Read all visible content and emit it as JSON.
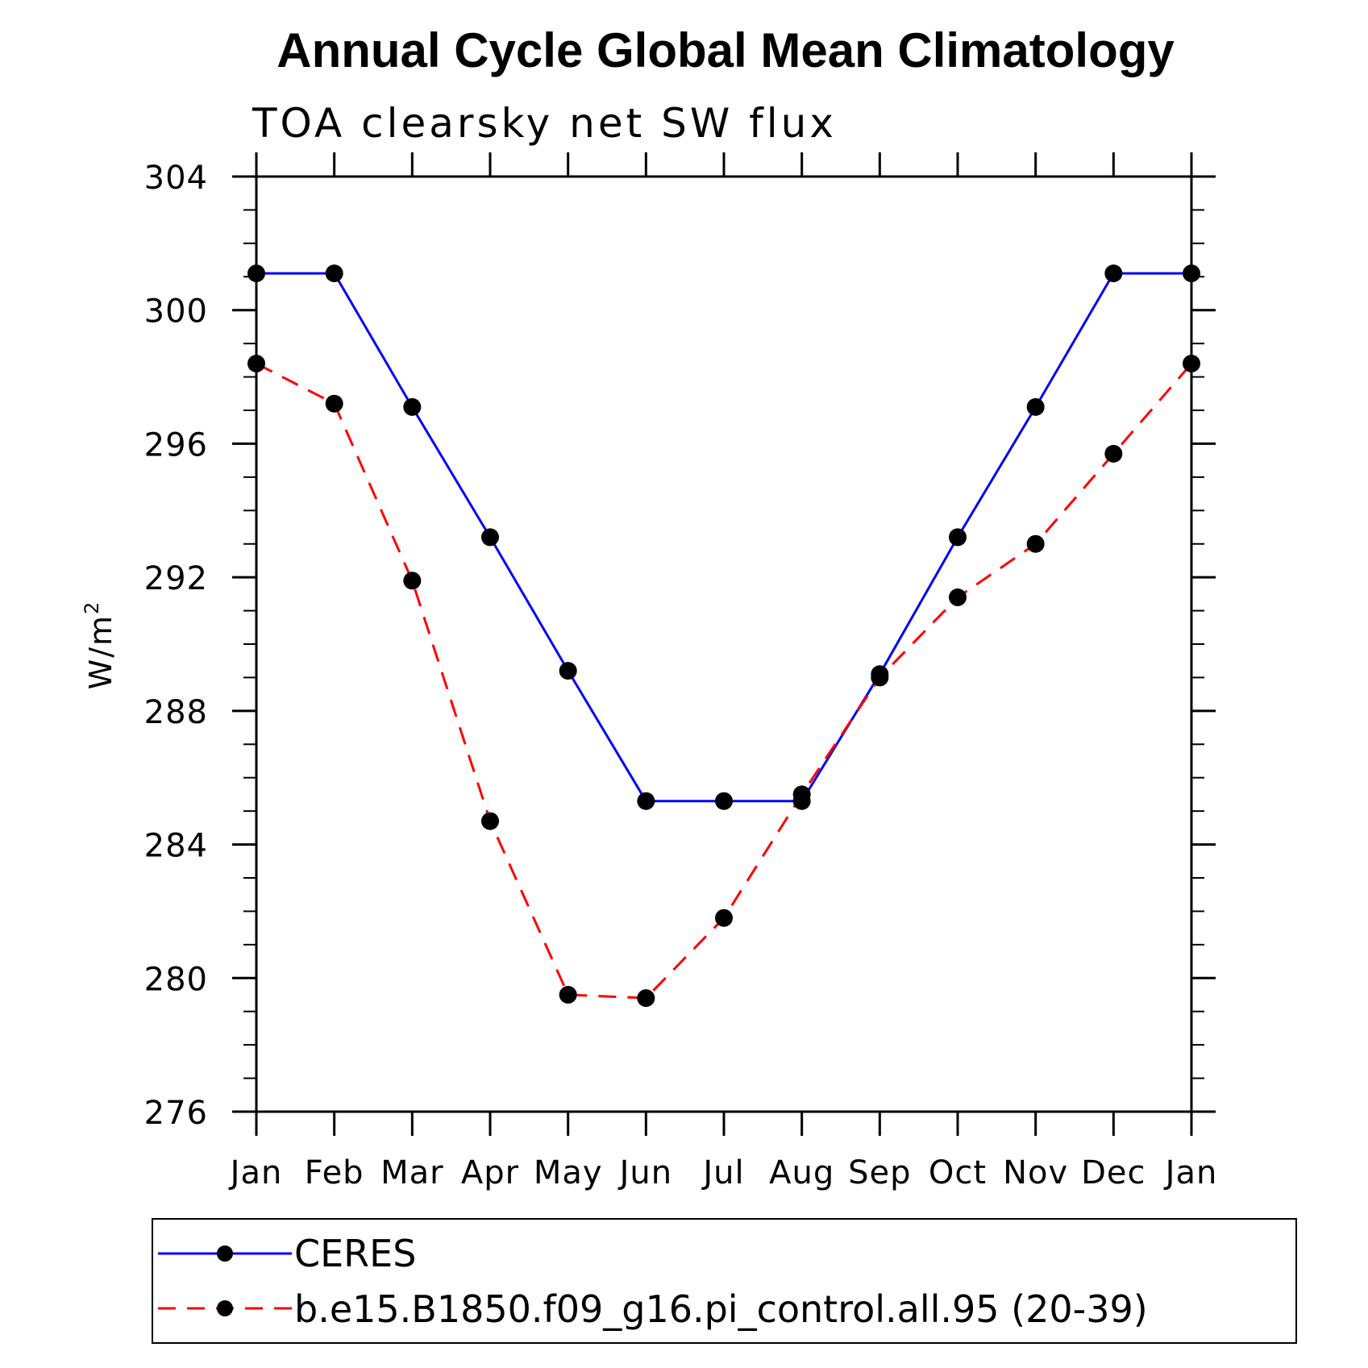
{
  "chart_data": {
    "type": "line",
    "title": "Annual Cycle Global Mean Climatology",
    "subtitle": "TOA clearsky net SW flux",
    "ylabel": "W/m",
    "ylabel_sup": "2",
    "ylim": [
      276,
      304
    ],
    "yticks": [
      276,
      280,
      284,
      288,
      292,
      296,
      300,
      304
    ],
    "y_minor_step": 1,
    "categories": [
      "Jan",
      "Feb",
      "Mar",
      "Apr",
      "May",
      "Jun",
      "Jul",
      "Aug",
      "Sep",
      "Oct",
      "Nov",
      "Dec",
      "Jan"
    ],
    "grid": false,
    "legend_position": "bottom",
    "series": [
      {
        "name": "CERES",
        "color": "#0000ff",
        "dash": "solid",
        "marker": "filled-circle",
        "values": [
          301.1,
          301.1,
          297.1,
          293.2,
          289.2,
          285.3,
          285.3,
          285.3,
          289.1,
          293.2,
          297.1,
          301.1,
          301.1
        ]
      },
      {
        "name": "b.e15.B1850.f09_g16.pi_control.all.95 (20-39)",
        "color": "#ff0000",
        "dash": "dashed",
        "marker": "filled-circle",
        "values": [
          298.4,
          297.2,
          291.9,
          284.7,
          279.5,
          279.4,
          281.8,
          285.5,
          289.0,
          291.4,
          293.0,
          295.7,
          298.4
        ]
      }
    ]
  }
}
